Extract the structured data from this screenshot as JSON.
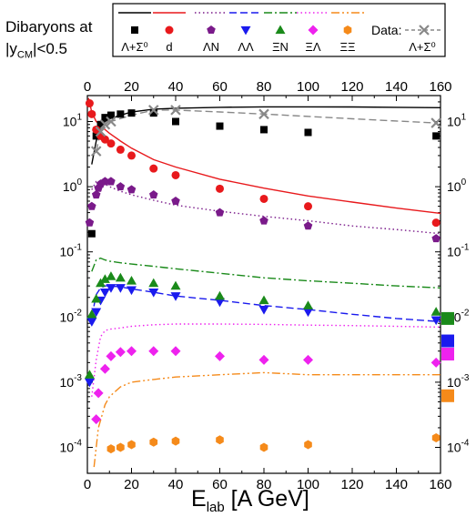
{
  "chart_data": {
    "type": "scatter",
    "title_lines": [
      "Dibaryons at",
      "|y",
      "CM",
      "|<0.5"
    ],
    "xlabel_main": "E",
    "xlabel_sub": "lab",
    "xlabel_unit": " [A GeV]",
    "xlim": [
      0,
      160
    ],
    "ylim": [
      4e-05,
      25
    ],
    "yscale": "log",
    "x_ticks": [
      "0",
      "20",
      "40",
      "60",
      "80",
      "100",
      "120",
      "140",
      "160"
    ],
    "x_tick_values": [
      0,
      20,
      40,
      60,
      80,
      100,
      120,
      140,
      160
    ],
    "y_ticks": [
      {
        "base": "10",
        "exp": "-4",
        "value": 0.0001
      },
      {
        "base": "10",
        "exp": "-3",
        "value": 0.001
      },
      {
        "base": "10",
        "exp": "-2",
        "value": 0.01
      },
      {
        "base": "10",
        "exp": "-1",
        "value": 0.1
      },
      {
        "base": "10",
        "exp": "0",
        "value": 1
      },
      {
        "base": "10",
        "exp": "1",
        "value": 10
      }
    ],
    "legend_data_label": "Data:",
    "legend_data_series": "Λ+Σ⁰",
    "series": [
      {
        "name": "Λ+Σ⁰",
        "color": "#000000",
        "marker": "square",
        "line_style": "solid",
        "points": [
          [
            2,
            0.19
          ],
          [
            4,
            6
          ],
          [
            6,
            9
          ],
          [
            8,
            11.5
          ],
          [
            10.7,
            12.5
          ],
          [
            15,
            13
          ],
          [
            20,
            13.5
          ],
          [
            30,
            13.5
          ],
          [
            40,
            10
          ],
          [
            60,
            8.5
          ],
          [
            80,
            7.5
          ],
          [
            100,
            6.8
          ],
          [
            158,
            6
          ]
        ],
        "curve": [
          [
            2,
            2.2
          ],
          [
            4,
            5
          ],
          [
            6,
            8
          ],
          [
            8,
            10
          ],
          [
            10,
            11
          ],
          [
            15,
            12.5
          ],
          [
            20,
            14
          ],
          [
            30,
            15.5
          ],
          [
            40,
            16
          ],
          [
            60,
            16.5
          ],
          [
            80,
            16.8
          ],
          [
            100,
            16.8
          ],
          [
            120,
            16.7
          ],
          [
            140,
            16.5
          ],
          [
            160,
            16.3
          ]
        ]
      },
      {
        "name": "d",
        "color": "#e8191c",
        "marker": "circle",
        "line_style": "solid",
        "points": [
          [
            1,
            19
          ],
          [
            2,
            13
          ],
          [
            4,
            7.5
          ],
          [
            6,
            6
          ],
          [
            8,
            5.3
          ],
          [
            10.7,
            4.6
          ],
          [
            15,
            3.7
          ],
          [
            20,
            3.0
          ],
          [
            30,
            1.9
          ],
          [
            40,
            1.5
          ],
          [
            60,
            0.93
          ],
          [
            80,
            0.65
          ],
          [
            100,
            0.5
          ],
          [
            158,
            0.28
          ]
        ],
        "curve": [
          [
            0.5,
            23
          ],
          [
            2,
            14
          ],
          [
            4,
            10
          ],
          [
            6,
            8.8
          ],
          [
            8,
            7.5
          ],
          [
            10,
            6.6
          ],
          [
            15,
            5.0
          ],
          [
            20,
            3.9
          ],
          [
            30,
            2.6
          ],
          [
            40,
            2.0
          ],
          [
            60,
            1.3
          ],
          [
            80,
            0.95
          ],
          [
            100,
            0.72
          ],
          [
            120,
            0.58
          ],
          [
            140,
            0.47
          ],
          [
            160,
            0.39
          ]
        ]
      },
      {
        "name": "ΛN",
        "color": "#7a1a8a",
        "marker": "pentagon",
        "line_style": "dotted",
        "points": [
          [
            1,
            0.28
          ],
          [
            2,
            0.5
          ],
          [
            4,
            0.75
          ],
          [
            5,
            0.95
          ],
          [
            6,
            1.1
          ],
          [
            8,
            1.2
          ],
          [
            10.7,
            1.2
          ],
          [
            15,
            1.0
          ],
          [
            20,
            0.9
          ],
          [
            30,
            0.75
          ],
          [
            40,
            0.6
          ],
          [
            60,
            0.4
          ],
          [
            80,
            0.3
          ],
          [
            100,
            0.25
          ],
          [
            158,
            0.16
          ]
        ],
        "curve": [
          [
            2,
            0.9
          ],
          [
            4,
            1.2
          ],
          [
            6,
            1.2
          ],
          [
            8,
            1.1
          ],
          [
            10,
            1.0
          ],
          [
            15,
            0.85
          ],
          [
            20,
            0.75
          ],
          [
            30,
            0.62
          ],
          [
            40,
            0.52
          ],
          [
            60,
            0.42
          ],
          [
            80,
            0.35
          ],
          [
            100,
            0.3
          ],
          [
            120,
            0.25
          ],
          [
            140,
            0.22
          ],
          [
            160,
            0.19
          ]
        ]
      },
      {
        "name": "ΛΛ",
        "color": "#1a1aee",
        "marker": "triangle-down",
        "line_style": "dashed",
        "points": [
          [
            1,
            0.001
          ],
          [
            2,
            0.0085
          ],
          [
            4,
            0.012
          ],
          [
            6,
            0.018
          ],
          [
            8,
            0.024
          ],
          [
            10.7,
            0.028
          ],
          [
            15,
            0.028
          ],
          [
            20,
            0.026
          ],
          [
            30,
            0.024
          ],
          [
            40,
            0.021
          ],
          [
            60,
            0.017
          ],
          [
            80,
            0.013
          ],
          [
            100,
            0.012
          ],
          [
            158,
            0.009
          ]
        ],
        "curve": [
          [
            2,
            0.01
          ],
          [
            4,
            0.022
          ],
          [
            6,
            0.028
          ],
          [
            8,
            0.03
          ],
          [
            10,
            0.03
          ],
          [
            15,
            0.029
          ],
          [
            20,
            0.027
          ],
          [
            30,
            0.024
          ],
          [
            40,
            0.021
          ],
          [
            60,
            0.018
          ],
          [
            80,
            0.015
          ],
          [
            100,
            0.013
          ],
          [
            120,
            0.011
          ],
          [
            140,
            0.0095
          ],
          [
            160,
            0.0085
          ]
        ]
      },
      {
        "name": "ΞN",
        "color": "#1a8a1a",
        "marker": "triangle-up",
        "line_style": "dashdot",
        "points": [
          [
            1,
            0.0013
          ],
          [
            2,
            0.011
          ],
          [
            4,
            0.019
          ],
          [
            6,
            0.033
          ],
          [
            8,
            0.038
          ],
          [
            10.7,
            0.042
          ],
          [
            15,
            0.04
          ],
          [
            20,
            0.036
          ],
          [
            30,
            0.033
          ],
          [
            40,
            0.03
          ],
          [
            60,
            0.021
          ],
          [
            80,
            0.018
          ],
          [
            100,
            0.015
          ],
          [
            158,
            0.012
          ]
        ],
        "curve": [
          [
            2,
            0.05
          ],
          [
            4,
            0.075
          ],
          [
            6,
            0.08
          ],
          [
            8,
            0.075
          ],
          [
            10,
            0.072
          ],
          [
            15,
            0.068
          ],
          [
            20,
            0.065
          ],
          [
            30,
            0.06
          ],
          [
            40,
            0.055
          ],
          [
            60,
            0.047
          ],
          [
            80,
            0.04
          ],
          [
            100,
            0.036
          ],
          [
            120,
            0.033
          ],
          [
            140,
            0.03
          ],
          [
            160,
            0.028
          ]
        ]
      },
      {
        "name": "ΞΛ",
        "color": "#ee22ee",
        "marker": "diamond",
        "line_style": "dotted",
        "points": [
          [
            4,
            0.00027
          ],
          [
            5,
            0.00068
          ],
          [
            8,
            0.0016
          ],
          [
            10.7,
            0.0025
          ],
          [
            15,
            0.0029
          ],
          [
            20,
            0.003
          ],
          [
            30,
            0.003
          ],
          [
            40,
            0.003
          ],
          [
            60,
            0.0025
          ],
          [
            80,
            0.0022
          ],
          [
            100,
            0.0022
          ],
          [
            158,
            0.002
          ]
        ],
        "curve": [
          [
            2,
            0.0006
          ],
          [
            4,
            0.0022
          ],
          [
            6,
            0.005
          ],
          [
            8,
            0.0062
          ],
          [
            10,
            0.0065
          ],
          [
            15,
            0.0068
          ],
          [
            20,
            0.0072
          ],
          [
            30,
            0.0076
          ],
          [
            40,
            0.0078
          ],
          [
            60,
            0.0078
          ],
          [
            80,
            0.0077
          ],
          [
            100,
            0.0075
          ],
          [
            120,
            0.0074
          ],
          [
            140,
            0.0072
          ],
          [
            160,
            0.007
          ]
        ]
      },
      {
        "name": "ΞΞ",
        "color": "#f58a1a",
        "marker": "hexagon",
        "line_style": "dashdotdot",
        "points": [
          [
            10.7,
            9.5e-05
          ],
          [
            15,
            0.0001
          ],
          [
            20,
            0.00011
          ],
          [
            30,
            0.00012
          ],
          [
            40,
            0.000125
          ],
          [
            60,
            0.00013
          ],
          [
            80,
            0.0001
          ],
          [
            100,
            0.00011
          ],
          [
            158,
            0.00014
          ]
        ],
        "curve": [
          [
            3,
            5e-05
          ],
          [
            5,
            0.0002
          ],
          [
            8,
            0.00045
          ],
          [
            10,
            0.0006
          ],
          [
            15,
            0.00085
          ],
          [
            20,
            0.001
          ],
          [
            30,
            0.0011
          ],
          [
            40,
            0.0012
          ],
          [
            60,
            0.0013
          ],
          [
            80,
            0.0014
          ],
          [
            100,
            0.0013
          ],
          [
            120,
            0.0013
          ],
          [
            140,
            0.0013
          ],
          [
            160,
            0.0013
          ]
        ]
      },
      {
        "name": "Λ+Σ⁰",
        "color": "#888888",
        "marker": "cross",
        "line_style": "dashed",
        "is_data_legend": true,
        "points": [
          [
            4,
            3.5
          ],
          [
            6,
            7
          ],
          [
            8,
            9
          ],
          [
            10.7,
            10
          ],
          [
            30,
            15
          ],
          [
            40,
            15
          ],
          [
            80,
            13
          ],
          [
            158,
            9.5
          ]
        ],
        "curve": [
          [
            4,
            3.5
          ],
          [
            6,
            7
          ],
          [
            8,
            9
          ],
          [
            10.7,
            10
          ],
          [
            20,
            12.5
          ],
          [
            30,
            15
          ],
          [
            40,
            15
          ],
          [
            60,
            14
          ],
          [
            80,
            13
          ],
          [
            120,
            11
          ],
          [
            158,
            9.5
          ]
        ]
      }
    ],
    "right_side_markers": [
      {
        "color": "#1a8a1a",
        "value": 0.0095
      },
      {
        "color": "#1a1aee",
        "value": 0.0043
      },
      {
        "color": "#ee22ee",
        "value": 0.0027
      },
      {
        "color": "#f58a1a",
        "value": 0.00062
      }
    ]
  }
}
